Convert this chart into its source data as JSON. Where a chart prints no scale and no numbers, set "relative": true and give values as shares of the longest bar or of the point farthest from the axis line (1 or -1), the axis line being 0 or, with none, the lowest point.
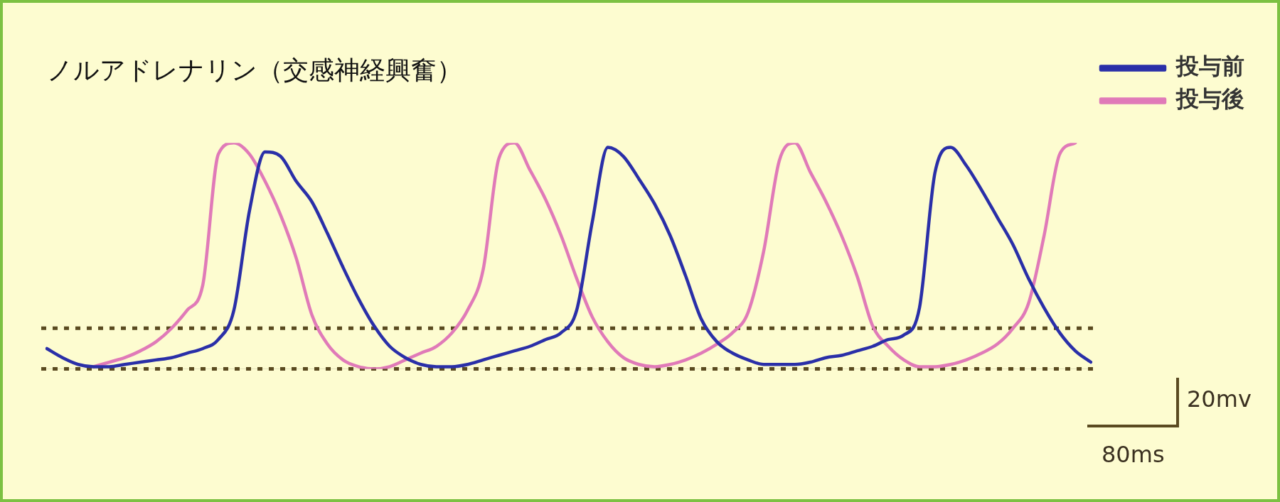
{
  "chart_data": {
    "type": "line",
    "title": "ノルアドレナリン（交感神経興奮）",
    "relative": true,
    "marker": "none",
    "line_style": "solid",
    "legend": "top right",
    "categories": [
      null,
      null,
      null,
      null,
      null,
      null,
      null,
      null,
      null,
      null,
      null,
      null,
      null,
      null,
      null,
      null,
      null,
      null,
      null,
      null,
      null,
      null,
      null,
      null,
      null,
      null,
      null,
      null,
      null,
      null,
      null,
      null,
      null,
      null,
      null,
      null,
      null,
      null,
      null,
      null,
      null,
      null,
      null,
      null,
      null,
      null,
      null,
      null,
      null,
      null,
      null,
      null,
      null,
      null,
      null,
      null,
      null,
      null,
      null,
      null,
      null,
      null,
      null,
      null,
      null,
      null,
      null,
      null
    ],
    "series": [
      {
        "name": "投与前",
        "color": "#2a2fa8",
        "values": [
          0.09,
          0.05,
          0.02,
          0.01,
          0.01,
          0.02,
          0.03,
          0.04,
          0.05,
          0.07,
          0.09,
          0.13,
          0.26,
          0.7,
          0.96,
          0.94,
          0.83,
          0.74,
          0.6,
          0.45,
          0.31,
          0.19,
          0.1,
          0.05,
          0.02,
          0.01,
          0.01,
          0.02,
          0.04,
          0.06,
          0.08,
          0.1,
          0.13,
          0.16,
          0.26,
          0.65,
          0.98,
          0.94,
          0.84,
          0.73,
          0.59,
          0.41,
          0.22,
          0.12,
          0.07,
          0.04,
          0.02,
          0.02,
          0.02,
          0.03,
          0.05,
          0.06,
          0.08,
          0.1,
          0.13,
          0.15,
          0.27,
          0.87,
          0.98,
          0.9,
          0.79,
          0.67,
          0.55,
          0.4,
          0.27,
          0.16,
          0.08,
          0.03
        ]
      },
      {
        "name": "投与後",
        "color": "#e07ab8",
        "values": [
          null,
          null,
          null,
          0.01,
          0.03,
          0.05,
          0.08,
          0.12,
          0.18,
          0.26,
          0.37,
          0.95,
          1,
          0.95,
          0.83,
          0.68,
          0.49,
          0.24,
          0.11,
          0.04,
          0.01,
          0,
          0.01,
          0.04,
          0.07,
          0.1,
          0.16,
          0.26,
          0.44,
          0.93,
          1,
          0.88,
          0.75,
          0.59,
          0.4,
          0.23,
          0.12,
          0.05,
          0.02,
          0.01,
          0.02,
          0.04,
          0.07,
          0.11,
          0.16,
          0.25,
          0.52,
          0.92,
          1,
          0.87,
          0.74,
          0.59,
          0.41,
          0.19,
          0.1,
          0.04,
          0.01,
          0.01,
          0.02,
          0.04,
          0.07,
          0.11,
          0.18,
          0.29,
          0.59,
          0.95,
          1,
          null
        ]
      }
    ],
    "ref_lines": [
      {
        "axis": "y",
        "value": 0.18,
        "color": "#5a4a20",
        "line_style": "dotted"
      },
      {
        "axis": "y",
        "value": 0,
        "color": "#5a4a20",
        "line_style": "dotted"
      }
    ],
    "annotations": [
      "20mv",
      "80ms"
    ]
  }
}
